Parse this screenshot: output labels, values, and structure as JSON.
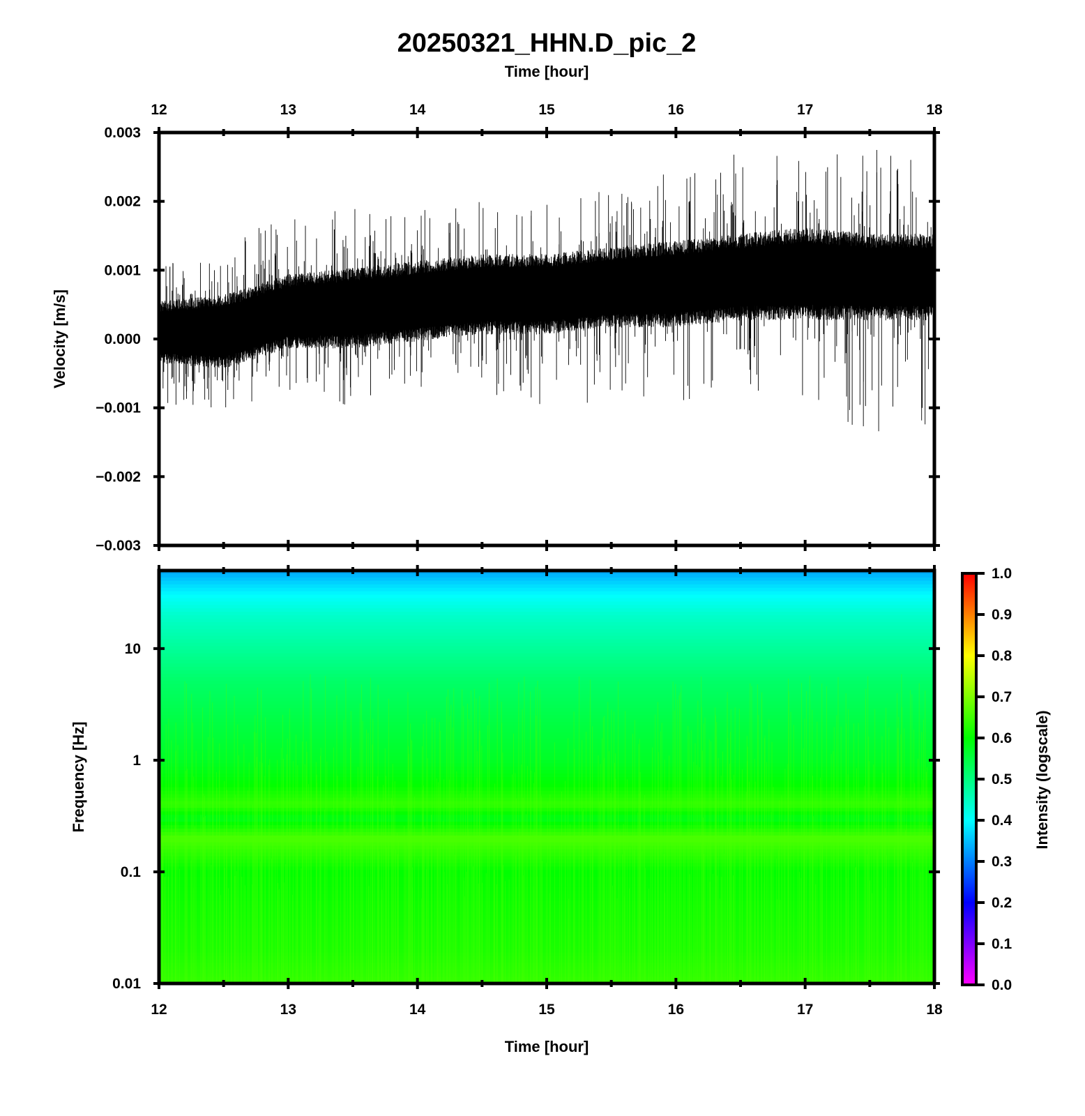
{
  "chart_data": [
    {
      "type": "line",
      "panel": "waveform",
      "title": "20250321_HHN.D_pic_2",
      "top_axis_label": "Time [hour]",
      "xlabel": "",
      "ylabel": "Velocity [m/s]",
      "xlim": [
        12,
        18
      ],
      "ylim": [
        -0.003,
        0.003
      ],
      "x_ticks": [
        "12",
        "13",
        "14",
        "15",
        "16",
        "17",
        "18"
      ],
      "y_ticks": [
        "0.003",
        "0.002",
        "0.001",
        "0.000",
        "−0.001",
        "−0.002",
        "−0.003"
      ],
      "y_tick_values": [
        0.003,
        0.002,
        0.001,
        0.0,
        -0.001,
        -0.002,
        -0.003
      ],
      "series": [
        {
          "color": "#000000",
          "envelope_x": [
            12.0,
            12.5,
            13.0,
            13.5,
            14.0,
            14.5,
            15.0,
            15.5,
            16.0,
            16.5,
            17.0,
            17.5,
            18.0
          ],
          "upper_typical": [
            0.0006,
            0.0007,
            0.001,
            0.0011,
            0.0012,
            0.0013,
            0.0013,
            0.0014,
            0.0015,
            0.0016,
            0.0017,
            0.0016,
            0.0016
          ],
          "lower_typical": [
            -0.0004,
            -0.0005,
            -0.0002,
            -0.0002,
            -0.0001,
            0.0,
            0.0,
            0.0001,
            0.0001,
            0.0002,
            0.0002,
            0.0002,
            0.0002
          ],
          "peak_max": [
            0.0011,
            0.0014,
            0.0019,
            0.0019,
            0.0019,
            0.002,
            0.002,
            0.0022,
            0.0025,
            0.0027,
            0.0028,
            0.0028,
            0.0025
          ],
          "peak_min": [
            -0.0011,
            -0.001,
            -0.0009,
            -0.001,
            -0.0008,
            -0.0007,
            -0.0012,
            -0.0008,
            -0.001,
            -0.0008,
            -0.001,
            -0.0014,
            -0.0013
          ]
        }
      ]
    },
    {
      "type": "heatmap",
      "panel": "spectrogram",
      "xlabel": "Time [hour]",
      "ylabel": "Frequency [Hz]",
      "xlim": [
        12,
        18
      ],
      "ylim": [
        0.01,
        50
      ],
      "y_scale": "log",
      "x_ticks": [
        "12",
        "13",
        "14",
        "15",
        "16",
        "17",
        "18"
      ],
      "y_ticks": [
        "10",
        "1",
        "0.1",
        "0.01"
      ],
      "y_tick_values": [
        10,
        1,
        0.1,
        0.01
      ],
      "intensity_profile": {
        "frequency": [
          50,
          30,
          20,
          10,
          5,
          2,
          1,
          0.6,
          0.4,
          0.3,
          0.2,
          0.1,
          0.05,
          0.02,
          0.01
        ],
        "intensity": [
          0.33,
          0.4,
          0.44,
          0.48,
          0.52,
          0.55,
          0.57,
          0.6,
          0.64,
          0.58,
          0.66,
          0.6,
          0.61,
          0.62,
          0.64
        ]
      },
      "colorbar": {
        "label": "Intensity (logscale)",
        "range": [
          0.0,
          1.0
        ],
        "ticks": [
          "1.0",
          "0.9",
          "0.8",
          "0.7",
          "0.6",
          "0.5",
          "0.4",
          "0.3",
          "0.2",
          "0.1",
          "0.0"
        ],
        "tick_values": [
          1.0,
          0.9,
          0.8,
          0.7,
          0.6,
          0.5,
          0.4,
          0.3,
          0.2,
          0.1,
          0.0
        ],
        "colormap": [
          "#ff00ff",
          "#0000ff",
          "#00ffff",
          "#00ff00",
          "#ffff00",
          "#ff0000"
        ]
      }
    }
  ]
}
